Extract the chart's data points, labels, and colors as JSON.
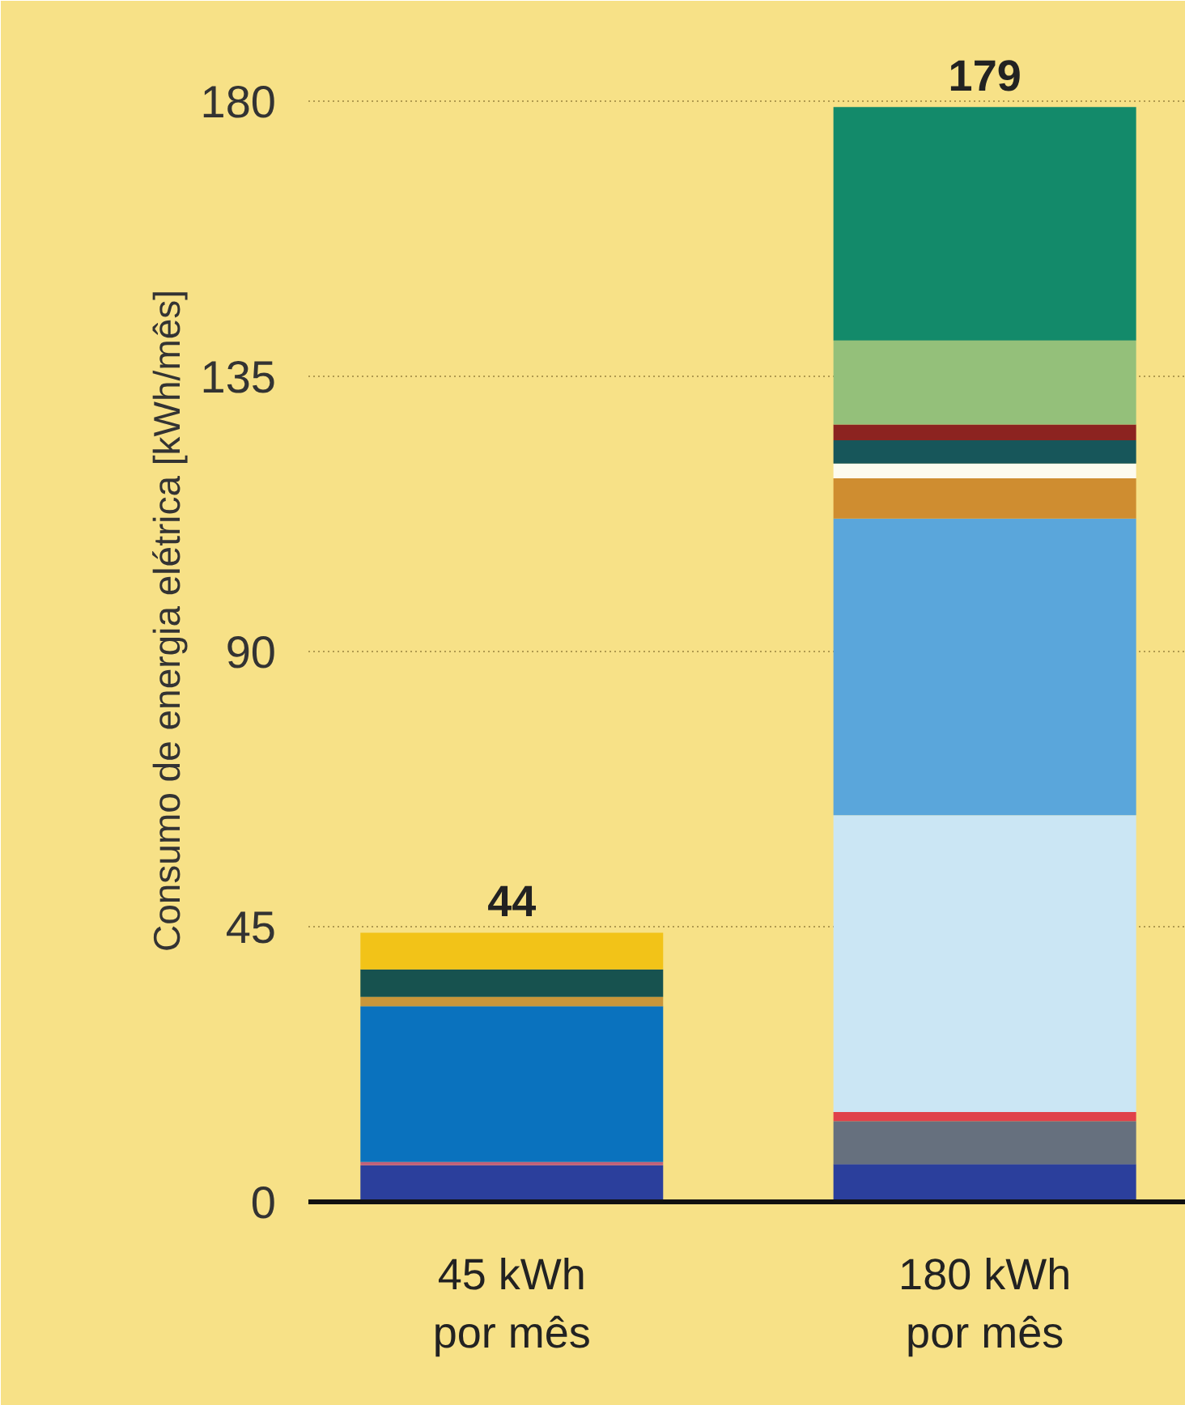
{
  "chart_data": {
    "type": "bar",
    "stacked": true,
    "ylabel": "Consumo de energia elétrica [kWh/mês]",
    "categories": [
      "45 kWh\npor mês",
      "180 kWh\npor mês"
    ],
    "series": [
      {
        "color": "#2b3f9c",
        "values": [
          6,
          6.2
        ]
      },
      {
        "color": "#c0607a",
        "values": [
          0.5,
          null
        ]
      },
      {
        "color": "#0a72be",
        "values": [
          25.5,
          null
        ]
      },
      {
        "color": "#c9963a",
        "values": [
          1.5,
          null
        ]
      },
      {
        "color": "#17524f",
        "values": [
          4.5,
          null
        ]
      },
      {
        "color": "#f2c318",
        "values": [
          6,
          null
        ]
      },
      {
        "color": "#66707e",
        "values": [
          null,
          7
        ]
      },
      {
        "color": "#e0424a",
        "values": [
          null,
          1.5
        ]
      },
      {
        "color": "#cbe6f4",
        "values": [
          null,
          48.5
        ]
      },
      {
        "color": "#5aa6db",
        "values": [
          null,
          48.5
        ]
      },
      {
        "color": "#cf8d30",
        "values": [
          null,
          6.6
        ]
      },
      {
        "color": "#fdfbee",
        "values": [
          null,
          2.4
        ]
      },
      {
        "color": "#17565a",
        "values": [
          null,
          3.8
        ]
      },
      {
        "color": "#8c2320",
        "values": [
          null,
          2.6
        ]
      },
      {
        "color": "#94c07a",
        "values": [
          null,
          13.7
        ]
      },
      {
        "color": "#138a6a",
        "values": [
          null,
          38.2
        ]
      }
    ],
    "totals": [
      "44",
      "179"
    ],
    "ylim": [
      0,
      190
    ],
    "yticks": [
      0,
      45,
      90,
      135,
      180
    ],
    "grid": "y"
  }
}
